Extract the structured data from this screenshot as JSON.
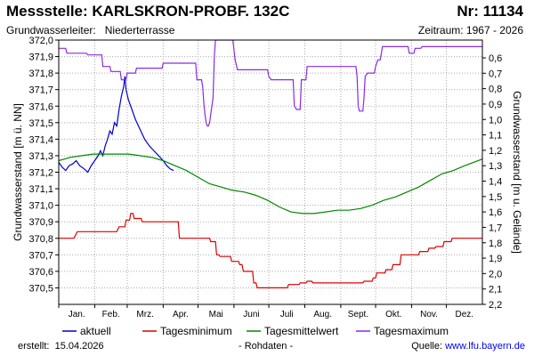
{
  "header": {
    "title_left": "Messstelle: KARLSKRON-PROBF. 132C",
    "title_right": "Nr: 11134",
    "aquifer_label": "Grundwasserleiter:",
    "aquifer_value": "Niederterrasse",
    "period": "Zeitraum: 1967 - 2026"
  },
  "footer": {
    "created_label": "erstellt:",
    "created_date": "15.04.2026",
    "raw_note": "- Rohdaten -",
    "source_label": "Quelle:",
    "source_link": "www.lfu.bayern.de"
  },
  "colors": {
    "aktuell": "#0000cc",
    "minimum": "#dd0000",
    "mittel": "#008800",
    "maximum": "#8a2be2",
    "grid": "#aaaaaa"
  },
  "chart_data": {
    "type": "line",
    "ylabel": "Grundwasserstand [m ü. NN]",
    "ylabel_right": "Grundwasserstand [m u. Gelände]",
    "ylim": [
      370.4,
      372.0
    ],
    "yticks": [
      "370,5",
      "370,6",
      "370,7",
      "370,8",
      "370,9",
      "371,0",
      "371,1",
      "371,2",
      "371,3",
      "371,4",
      "371,5",
      "371,6",
      "371,7",
      "371,8",
      "371,9",
      "372,0"
    ],
    "yticks_right": [
      "0,6",
      "0,7",
      "0,8",
      "0,9",
      "1,0",
      "1,1",
      "1,2",
      "1,3",
      "1,4",
      "1,5",
      "1,6",
      "1,7",
      "1,8",
      "1,9",
      "2,0",
      "2,1",
      "2,2"
    ],
    "months": [
      "Jan.",
      "Feb.",
      "Mrz.",
      "Apr.",
      "Mai",
      "Juni",
      "Juli",
      "Aug.",
      "Sept.",
      "Okt.",
      "Nov.",
      "Dez."
    ],
    "x_unit": "day of year",
    "legend": [
      "aktuell",
      "Tagesminimum",
      "Tagesmittelwert",
      "Tagesmaximum"
    ],
    "legend_position": "bottom",
    "grid": true,
    "series": [
      {
        "name": "aktuell",
        "points": [
          [
            0,
            371.26
          ],
          [
            3,
            371.23
          ],
          [
            6,
            371.21
          ],
          [
            9,
            371.24
          ],
          [
            12,
            371.25
          ],
          [
            15,
            371.27
          ],
          [
            18,
            371.24
          ],
          [
            22,
            371.22
          ],
          [
            25,
            371.2
          ],
          [
            28,
            371.24
          ],
          [
            31,
            371.27
          ],
          [
            34,
            371.3
          ],
          [
            36,
            371.33
          ],
          [
            38,
            371.3
          ],
          [
            40,
            371.36
          ],
          [
            42,
            371.4
          ],
          [
            44,
            371.45
          ],
          [
            46,
            371.43
          ],
          [
            48,
            371.5
          ],
          [
            50,
            371.48
          ],
          [
            52,
            371.58
          ],
          [
            54,
            371.66
          ],
          [
            56,
            371.72
          ],
          [
            57,
            371.78
          ],
          [
            58,
            371.7
          ],
          [
            60,
            371.64
          ],
          [
            63,
            371.58
          ],
          [
            66,
            371.52
          ],
          [
            70,
            371.46
          ],
          [
            74,
            371.4
          ],
          [
            78,
            371.36
          ],
          [
            82,
            371.33
          ],
          [
            86,
            371.3
          ],
          [
            90,
            371.27
          ],
          [
            93,
            371.24
          ],
          [
            96,
            371.22
          ],
          [
            99,
            371.21
          ]
        ]
      },
      {
        "name": "Tagesminimum",
        "points": [
          [
            0,
            370.8
          ],
          [
            13,
            370.8
          ],
          [
            16,
            370.84
          ],
          [
            50,
            370.84
          ],
          [
            52,
            370.87
          ],
          [
            57,
            370.87
          ],
          [
            58,
            370.91
          ],
          [
            61,
            370.91
          ],
          [
            62,
            370.95
          ],
          [
            64,
            370.95
          ],
          [
            65,
            370.92
          ],
          [
            71,
            370.92
          ],
          [
            72,
            370.9
          ],
          [
            103,
            370.9
          ],
          [
            104,
            370.8
          ],
          [
            130,
            370.8
          ],
          [
            131,
            370.78
          ],
          [
            135,
            370.78
          ],
          [
            136,
            370.7
          ],
          [
            138,
            370.7
          ],
          [
            139,
            370.69
          ],
          [
            148,
            370.69
          ],
          [
            149,
            370.66
          ],
          [
            155,
            370.66
          ],
          [
            156,
            370.64
          ],
          [
            158,
            370.64
          ],
          [
            159,
            370.6
          ],
          [
            167,
            370.6
          ],
          [
            168,
            370.53
          ],
          [
            170,
            370.53
          ],
          [
            171,
            370.5
          ],
          [
            197,
            370.5
          ],
          [
            198,
            370.52
          ],
          [
            207,
            370.52
          ],
          [
            208,
            370.53
          ],
          [
            213,
            370.53
          ],
          [
            214,
            370.54
          ],
          [
            218,
            370.54
          ],
          [
            219,
            370.53
          ],
          [
            262,
            370.53
          ],
          [
            263,
            370.54
          ],
          [
            270,
            370.54
          ],
          [
            271,
            370.56
          ],
          [
            273,
            370.56
          ],
          [
            274,
            370.59
          ],
          [
            281,
            370.59
          ],
          [
            282,
            370.61
          ],
          [
            287,
            370.61
          ],
          [
            288,
            370.64
          ],
          [
            294,
            370.64
          ],
          [
            295,
            370.7
          ],
          [
            310,
            370.7
          ],
          [
            311,
            370.72
          ],
          [
            318,
            370.72
          ],
          [
            319,
            370.74
          ],
          [
            324,
            370.74
          ],
          [
            325,
            370.75
          ],
          [
            331,
            370.75
          ],
          [
            332,
            370.78
          ],
          [
            338,
            370.78
          ],
          [
            339,
            370.8
          ],
          [
            365,
            370.8
          ]
        ]
      },
      {
        "name": "Tagesmittelwert",
        "points": [
          [
            0,
            371.27
          ],
          [
            10,
            371.29
          ],
          [
            20,
            371.3
          ],
          [
            30,
            371.31
          ],
          [
            40,
            371.31
          ],
          [
            50,
            371.31
          ],
          [
            60,
            371.31
          ],
          [
            70,
            371.3
          ],
          [
            80,
            371.29
          ],
          [
            90,
            371.27
          ],
          [
            100,
            371.24
          ],
          [
            110,
            371.21
          ],
          [
            120,
            371.17
          ],
          [
            130,
            371.13
          ],
          [
            140,
            371.11
          ],
          [
            150,
            371.09
          ],
          [
            160,
            371.08
          ],
          [
            170,
            371.06
          ],
          [
            180,
            371.03
          ],
          [
            190,
            370.99
          ],
          [
            200,
            370.96
          ],
          [
            210,
            370.95
          ],
          [
            220,
            370.95
          ],
          [
            230,
            370.96
          ],
          [
            240,
            370.97
          ],
          [
            250,
            370.97
          ],
          [
            260,
            370.98
          ],
          [
            270,
            371.0
          ],
          [
            280,
            371.03
          ],
          [
            290,
            371.05
          ],
          [
            300,
            371.08
          ],
          [
            310,
            371.11
          ],
          [
            320,
            371.15
          ],
          [
            330,
            371.19
          ],
          [
            340,
            371.21
          ],
          [
            350,
            371.24
          ],
          [
            365,
            371.28
          ]
        ]
      },
      {
        "name": "Tagesmaximum",
        "points": [
          [
            0,
            371.95
          ],
          [
            6,
            371.95
          ],
          [
            7,
            371.92
          ],
          [
            24,
            371.92
          ],
          [
            25,
            371.91
          ],
          [
            37,
            371.91
          ],
          [
            38,
            371.84
          ],
          [
            44,
            371.84
          ],
          [
            45,
            371.81
          ],
          [
            53,
            371.81
          ],
          [
            54,
            371.76
          ],
          [
            58,
            371.76
          ],
          [
            59,
            371.8
          ],
          [
            66,
            371.8
          ],
          [
            67,
            371.83
          ],
          [
            89,
            371.83
          ],
          [
            90,
            371.86
          ],
          [
            118,
            371.86
          ],
          [
            119,
            371.76
          ],
          [
            123,
            371.76
          ],
          [
            124,
            371.72
          ],
          [
            125,
            371.62
          ],
          [
            126,
            371.55
          ],
          [
            127,
            371.5
          ],
          [
            128,
            371.48
          ],
          [
            129,
            371.48
          ],
          [
            130,
            371.5
          ],
          [
            131,
            371.55
          ],
          [
            132,
            371.6
          ],
          [
            133,
            371.65
          ],
          [
            134,
            371.9
          ],
          [
            135,
            372.0
          ],
          [
            150,
            372.0
          ],
          [
            151,
            371.94
          ],
          [
            152,
            371.88
          ],
          [
            153,
            371.85
          ],
          [
            154,
            371.82
          ],
          [
            180,
            371.82
          ],
          [
            181,
            371.78
          ],
          [
            183,
            371.76
          ],
          [
            202,
            371.76
          ],
          [
            203,
            371.6
          ],
          [
            205,
            371.58
          ],
          [
            208,
            371.58
          ],
          [
            209,
            371.76
          ],
          [
            213,
            371.76
          ],
          [
            214,
            371.84
          ],
          [
            256,
            371.84
          ],
          [
            257,
            371.78
          ],
          [
            258,
            371.6
          ],
          [
            259,
            371.57
          ],
          [
            262,
            371.57
          ],
          [
            263,
            371.65
          ],
          [
            264,
            371.78
          ],
          [
            266,
            371.8
          ],
          [
            272,
            371.8
          ],
          [
            273,
            371.84
          ],
          [
            275,
            371.88
          ],
          [
            277,
            371.88
          ],
          [
            278,
            371.92
          ],
          [
            279,
            371.96
          ],
          [
            301,
            371.96
          ],
          [
            302,
            371.92
          ],
          [
            306,
            371.92
          ],
          [
            307,
            371.95
          ],
          [
            312,
            371.95
          ],
          [
            313,
            371.96
          ],
          [
            365,
            371.96
          ]
        ]
      }
    ]
  }
}
